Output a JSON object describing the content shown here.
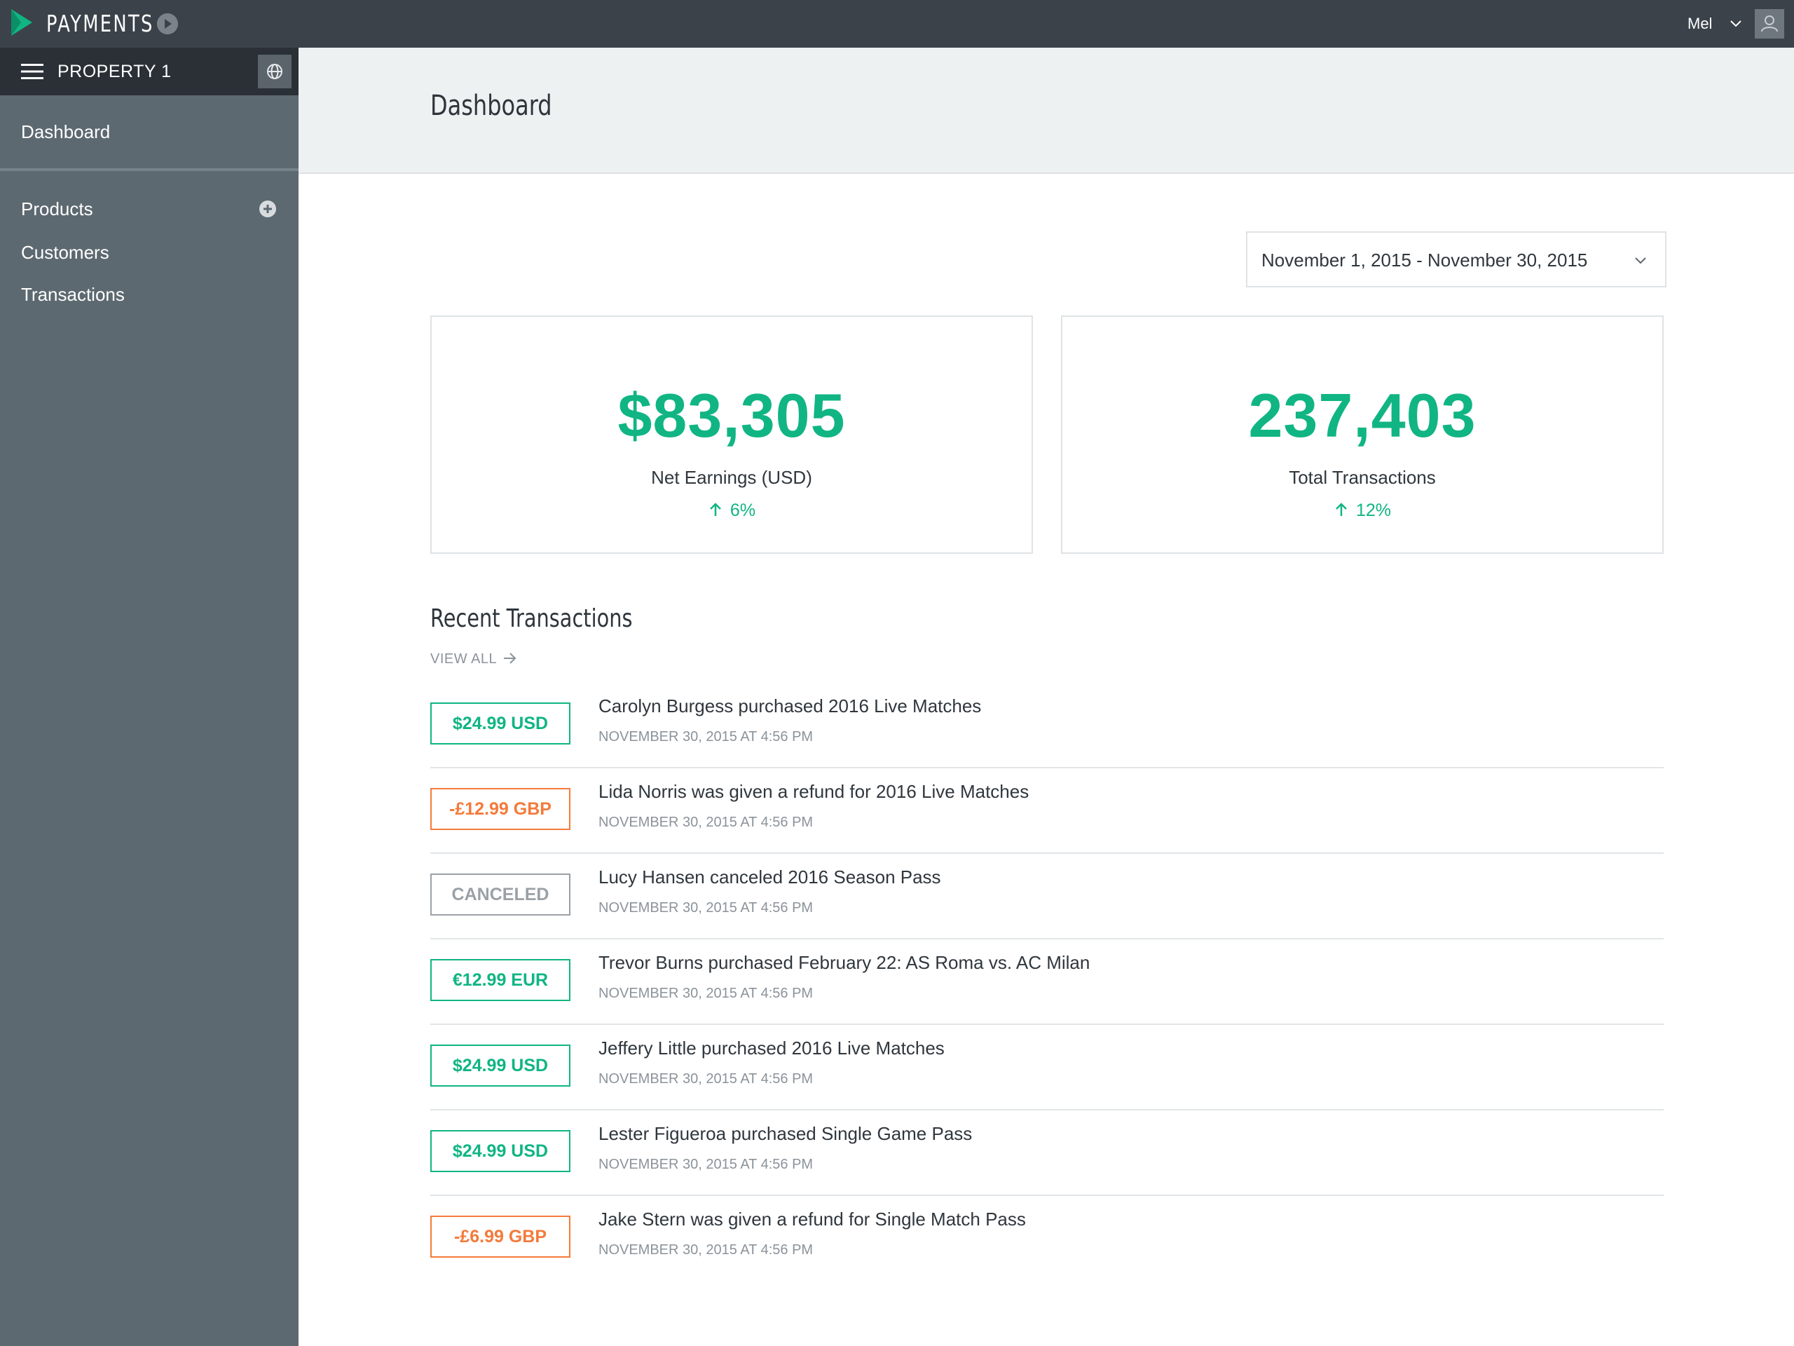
{
  "app": {
    "brand": "PAYMENTS",
    "user_name": "Mel"
  },
  "sidebar": {
    "property_name": "PROPERTY 1",
    "dashboard_label": "Dashboard",
    "items": [
      {
        "label": "Products"
      },
      {
        "label": "Customers"
      },
      {
        "label": "Transactions"
      }
    ]
  },
  "page": {
    "title": "Dashboard"
  },
  "date_range": {
    "value": "November 1, 2015 - November 30, 2015"
  },
  "stats": [
    {
      "value": "$83,305",
      "label": "Net Earnings (USD)",
      "delta": "6%"
    },
    {
      "value": "237,403",
      "label": "Total Transactions",
      "delta": "12%"
    }
  ],
  "recent": {
    "title": "Recent Transactions",
    "view_all": "VIEW ALL",
    "transactions": [
      {
        "amount": "$24.99 USD",
        "status": "purchase",
        "description": "Carolyn Burgess purchased 2016 Live Matches",
        "time": "NOVEMBER 30, 2015 AT 4:56 PM"
      },
      {
        "amount": "-£12.99 GBP",
        "status": "refund",
        "description": "Lida Norris was given a refund for 2016 Live Matches",
        "time": "NOVEMBER 30, 2015 AT 4:56 PM"
      },
      {
        "amount": "CANCELED",
        "status": "canceled",
        "description": "Lucy Hansen canceled 2016 Season Pass",
        "time": "NOVEMBER 30, 2015 AT 4:56 PM"
      },
      {
        "amount": "€12.99 EUR",
        "status": "purchase",
        "description": "Trevor Burns purchased February 22: AS Roma vs. AC Milan",
        "time": "NOVEMBER 30, 2015 AT 4:56 PM"
      },
      {
        "amount": "$24.99 USD",
        "status": "purchase",
        "description": "Jeffery Little purchased 2016 Live Matches",
        "time": "NOVEMBER 30, 2015 AT 4:56 PM"
      },
      {
        "amount": "$24.99 USD",
        "status": "purchase",
        "description": "Lester Figueroa purchased Single Game Pass",
        "time": "NOVEMBER 30, 2015 AT 4:56 PM"
      },
      {
        "amount": "-£6.99 GBP",
        "status": "refund",
        "description": "Jake Stern was given a refund for Single Match Pass",
        "time": "NOVEMBER 30, 2015 AT 4:56 PM"
      }
    ]
  },
  "colors": {
    "accent_green": "#10b583",
    "refund_orange": "#f47a3a",
    "canceled_gray": "#9aa1a6",
    "topbar": "#3b424a",
    "sidebar": "#5d6970"
  },
  "icons": {
    "logo": "payments-logo-icon",
    "brand_arrow": "arrow-right-circle-icon",
    "user_chevron": "chevron-down-icon",
    "avatar": "user-icon",
    "menu": "hamburger-menu-icon",
    "globe": "globe-icon",
    "add": "plus-circle-icon",
    "date_chevron": "chevron-down-icon",
    "delta": "arrow-up-icon",
    "view_all": "arrow-right-icon"
  }
}
